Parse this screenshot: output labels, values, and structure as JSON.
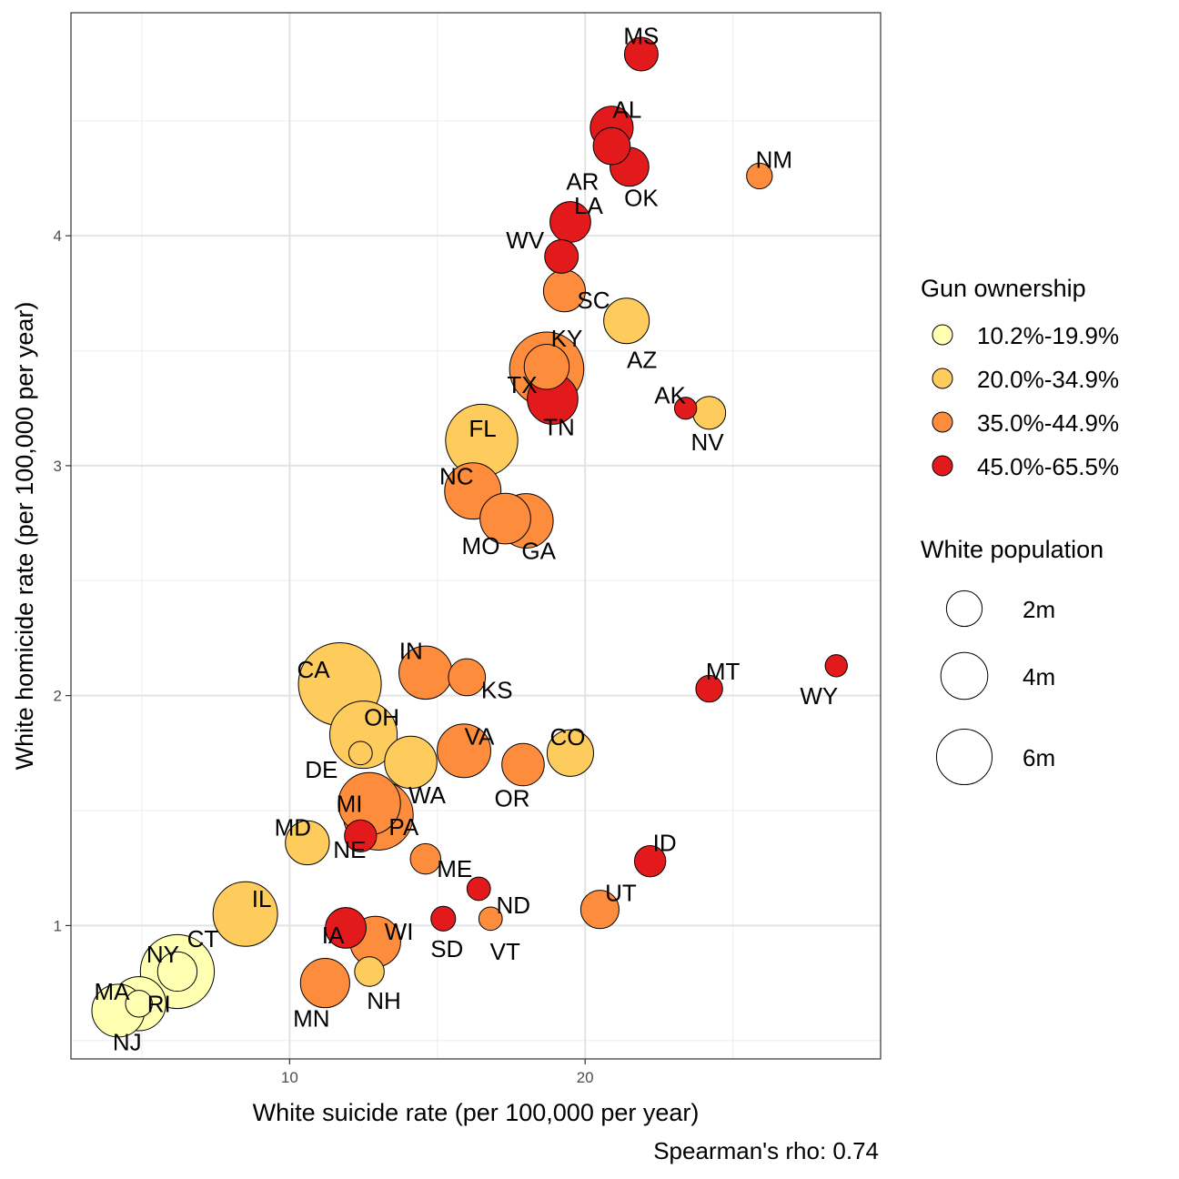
{
  "chart_data": {
    "type": "scatter",
    "xlabel": "White suicide rate (per 100,000 per year)",
    "ylabel": "White homicide rate (per 100,000 per year)",
    "xlim": [
      2.6,
      30.0
    ],
    "ylim": [
      0.42,
      4.97
    ],
    "x_ticks": [
      10,
      20
    ],
    "y_ticks": [
      1,
      2,
      3,
      4
    ],
    "grid": true,
    "caption": "Spearman's rho:  0.74",
    "color_legend": {
      "title": "Gun ownership",
      "placement": "right",
      "items": [
        {
          "label": "10.2%-19.9%",
          "color": "#FFFFB2"
        },
        {
          "label": "20.0%-34.9%",
          "color": "#FECC5C"
        },
        {
          "label": "35.0%-44.9%",
          "color": "#FD8D3C"
        },
        {
          "label": "45.0%-65.5%",
          "color": "#E31A1C"
        }
      ]
    },
    "size_legend": {
      "title": "White population",
      "items": [
        {
          "label": "2m",
          "value": 2
        },
        {
          "label": "4m",
          "value": 4
        },
        {
          "label": "6m",
          "value": 6
        }
      ]
    },
    "points": [
      {
        "state": "MS",
        "x": 21.9,
        "y": 4.79,
        "pop": 1.7,
        "group": 3
      },
      {
        "state": "AL",
        "x": 20.9,
        "y": 4.47,
        "pop": 3.2,
        "group": 3
      },
      {
        "state": "AR",
        "x": 20.9,
        "y": 4.39,
        "pop": 2.2,
        "group": 3
      },
      {
        "state": "OK",
        "x": 21.5,
        "y": 4.3,
        "pop": 2.5,
        "group": 3
      },
      {
        "state": "NM",
        "x": 25.9,
        "y": 4.26,
        "pop": 0.8,
        "group": 2
      },
      {
        "state": "LA",
        "x": 19.5,
        "y": 4.06,
        "pop": 2.8,
        "group": 3
      },
      {
        "state": "WV",
        "x": 19.2,
        "y": 3.91,
        "pop": 1.7,
        "group": 3
      },
      {
        "state": "SC",
        "x": 19.3,
        "y": 3.76,
        "pop": 3.0,
        "group": 2
      },
      {
        "state": "AZ",
        "x": 21.4,
        "y": 3.63,
        "pop": 3.7,
        "group": 1
      },
      {
        "state": "KY",
        "x": 18.7,
        "y": 3.43,
        "pop": 3.6,
        "group": 2
      },
      {
        "state": "TX",
        "x": 18.7,
        "y": 3.42,
        "pop": 11.7,
        "group": 2
      },
      {
        "state": "TN",
        "x": 18.9,
        "y": 3.29,
        "pop": 4.8,
        "group": 3
      },
      {
        "state": "AK",
        "x": 23.4,
        "y": 3.25,
        "pop": 0.5,
        "group": 3
      },
      {
        "state": "NV",
        "x": 24.2,
        "y": 3.23,
        "pop": 1.6,
        "group": 1
      },
      {
        "state": "FL",
        "x": 16.5,
        "y": 3.11,
        "pop": 11.0,
        "group": 1
      },
      {
        "state": "NC",
        "x": 16.2,
        "y": 2.89,
        "pop": 6.2,
        "group": 2
      },
      {
        "state": "MO",
        "x": 17.3,
        "y": 2.77,
        "pop": 4.8,
        "group": 2
      },
      {
        "state": "GA",
        "x": 18.0,
        "y": 2.76,
        "pop": 5.7,
        "group": 2
      },
      {
        "state": "CA",
        "x": 11.7,
        "y": 2.05,
        "pop": 15.0,
        "group": 1
      },
      {
        "state": "IN",
        "x": 14.6,
        "y": 2.1,
        "pop": 5.4,
        "group": 2
      },
      {
        "state": "KS",
        "x": 16.0,
        "y": 2.08,
        "pop": 2.2,
        "group": 2
      },
      {
        "state": "MT",
        "x": 24.2,
        "y": 2.03,
        "pop": 0.9,
        "group": 3
      },
      {
        "state": "WY",
        "x": 28.5,
        "y": 2.13,
        "pop": 0.5,
        "group": 3
      },
      {
        "state": "OH",
        "x": 12.5,
        "y": 1.83,
        "pop": 9.4,
        "group": 1
      },
      {
        "state": "DE",
        "x": 12.4,
        "y": 1.75,
        "pop": 0.6,
        "group": 1
      },
      {
        "state": "VA",
        "x": 15.9,
        "y": 1.76,
        "pop": 5.5,
        "group": 2
      },
      {
        "state": "WA",
        "x": 14.1,
        "y": 1.71,
        "pop": 5.2,
        "group": 1
      },
      {
        "state": "OR",
        "x": 17.9,
        "y": 1.7,
        "pop": 3.1,
        "group": 2
      },
      {
        "state": "CO",
        "x": 19.5,
        "y": 1.75,
        "pop": 3.9,
        "group": 1
      },
      {
        "state": "MI",
        "x": 12.7,
        "y": 1.53,
        "pop": 7.8,
        "group": 2
      },
      {
        "state": "PA",
        "x": 13.0,
        "y": 1.48,
        "pop": 10.2,
        "group": 2
      },
      {
        "state": "NE",
        "x": 12.4,
        "y": 1.39,
        "pop": 1.5,
        "group": 3
      },
      {
        "state": "MD",
        "x": 10.6,
        "y": 1.36,
        "pop": 3.4,
        "group": 1
      },
      {
        "state": "ME",
        "x": 14.6,
        "y": 1.29,
        "pop": 1.3,
        "group": 2
      },
      {
        "state": "ID",
        "x": 22.2,
        "y": 1.28,
        "pop": 1.4,
        "group": 3
      },
      {
        "state": "ND",
        "x": 16.4,
        "y": 1.16,
        "pop": 0.6,
        "group": 3
      },
      {
        "state": "IL",
        "x": 8.5,
        "y": 1.05,
        "pop": 8.5,
        "group": 1
      },
      {
        "state": "UT",
        "x": 20.5,
        "y": 1.07,
        "pop": 2.4,
        "group": 2
      },
      {
        "state": "SD",
        "x": 15.2,
        "y": 1.03,
        "pop": 0.7,
        "group": 3
      },
      {
        "state": "VT",
        "x": 16.8,
        "y": 1.03,
        "pop": 0.6,
        "group": 2
      },
      {
        "state": "IA",
        "x": 11.9,
        "y": 0.99,
        "pop": 2.8,
        "group": 3
      },
      {
        "state": "WI",
        "x": 12.9,
        "y": 0.93,
        "pop": 4.8,
        "group": 2
      },
      {
        "state": "CT",
        "x": 6.2,
        "y": 0.8,
        "pop": 2.6,
        "group": 0
      },
      {
        "state": "NY",
        "x": 6.2,
        "y": 0.8,
        "pop": 11.6,
        "group": 0
      },
      {
        "state": "NH",
        "x": 12.7,
        "y": 0.8,
        "pop": 1.2,
        "group": 1
      },
      {
        "state": "MN",
        "x": 11.2,
        "y": 0.75,
        "pop": 4.5,
        "group": 2
      },
      {
        "state": "RI",
        "x": 4.9,
        "y": 0.66,
        "pop": 0.9,
        "group": 0
      },
      {
        "state": "NJ",
        "x": 4.9,
        "y": 0.66,
        "pop": 5.6,
        "group": 0
      },
      {
        "state": "MA",
        "x": 4.2,
        "y": 0.63,
        "pop": 5.3,
        "group": 0
      }
    ]
  }
}
